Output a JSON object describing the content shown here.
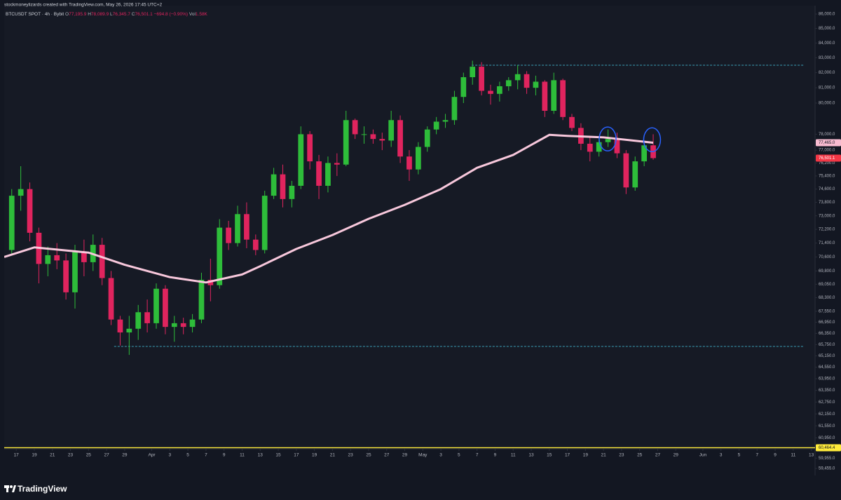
{
  "header": "stockmoneylizards created with TradingView.com, May 26, 2026 17:45 UTC+2",
  "footer": {
    "brand": "TradingView"
  },
  "chart_data": {
    "type": "candlestick",
    "log_scale": true,
    "grid": false,
    "legend": {
      "symbol": "BTCUSDT SPOT · 4h · Bybit",
      "items": [
        {
          "key": "O",
          "value": "77,195.9"
        },
        {
          "key": "H",
          "value": "78,089.9"
        },
        {
          "key": "L",
          "value": "76,345.7"
        },
        {
          "key": "C",
          "value": "76,501.1"
        }
      ],
      "change": "−694.8 (−0.90%)",
      "volume_key": "Vol",
      "volume": "1.58K"
    },
    "up_color": "#2ebd3a",
    "down_color": "#e0245e",
    "xlim": [
      "2026-03-15T16:00",
      "2026-06-13T10:00"
    ],
    "ylim": [
      59320,
      86590
    ],
    "x": [
      "2026-03-16",
      "2026-03-17",
      "2026-03-18",
      "2026-03-19",
      "2026-03-20",
      "2026-03-21",
      "2026-03-22",
      "2026-03-23",
      "2026-03-24",
      "2026-03-25",
      "2026-03-26",
      "2026-03-27",
      "2026-03-28",
      "2026-03-29",
      "2026-03-30",
      "2026-03-31",
      "2026-04-01",
      "2026-04-02",
      "2026-04-03",
      "2026-04-04",
      "2026-04-05",
      "2026-04-06",
      "2026-04-07",
      "2026-04-08",
      "2026-04-09",
      "2026-04-10",
      "2026-04-11",
      "2026-04-12",
      "2026-04-13",
      "2026-04-14",
      "2026-04-15",
      "2026-04-16",
      "2026-04-17",
      "2026-04-18",
      "2026-04-19",
      "2026-04-20",
      "2026-04-21",
      "2026-04-22",
      "2026-04-23",
      "2026-04-24",
      "2026-04-25",
      "2026-04-26",
      "2026-04-27",
      "2026-04-28",
      "2026-04-29",
      "2026-04-30",
      "2026-05-01",
      "2026-05-02",
      "2026-05-03",
      "2026-05-04",
      "2026-05-05",
      "2026-05-06",
      "2026-05-07",
      "2026-05-08",
      "2026-05-09",
      "2026-05-10",
      "2026-05-11",
      "2026-05-12",
      "2026-05-13",
      "2026-05-14",
      "2026-05-15",
      "2026-05-16",
      "2026-05-17",
      "2026-05-18",
      "2026-05-19",
      "2026-05-20",
      "2026-05-21",
      "2026-05-22",
      "2026-05-23",
      "2026-05-24",
      "2026-05-25",
      "2026-05-26"
    ],
    "open": [
      71000,
      74200,
      74600,
      72000,
      70200,
      70700,
      70400,
      68600,
      70900,
      70300,
      71300,
      69400,
      67100,
      66400,
      66600,
      67500,
      66900,
      68800,
      66700,
      66900,
      66700,
      67100,
      69300,
      69000,
      72300,
      71400,
      73100,
      71600,
      71000,
      74200,
      75500,
      74000,
      74800,
      78000,
      76300,
      74800,
      76200,
      76100,
      78900,
      78000,
      78000,
      77700,
      77600,
      78900,
      76600,
      75800,
      77200,
      78300,
      78800,
      78900,
      80400,
      81700,
      82400,
      80800,
      80600,
      81100,
      81500,
      81900,
      81000,
      81400,
      79500,
      81500,
      79100,
      78400,
      77400,
      76900,
      77500,
      77700,
      76800,
      74700,
      76300,
      77300
    ],
    "high": [
      74600,
      76000,
      75000,
      72300,
      71200,
      71400,
      70800,
      71300,
      71600,
      71900,
      71700,
      69800,
      67300,
      67300,
      67900,
      68200,
      69100,
      69000,
      67300,
      67200,
      67400,
      69700,
      70500,
      72800,
      72700,
      73600,
      73800,
      71900,
      74500,
      75900,
      76100,
      75100,
      78500,
      78200,
      76700,
      76600,
      76800,
      79500,
      79000,
      78500,
      78300,
      78100,
      79500,
      79200,
      77000,
      77500,
      78500,
      79100,
      79300,
      80800,
      82000,
      82800,
      82700,
      81200,
      81400,
      81700,
      82500,
      82100,
      81800,
      81500,
      82000,
      81600,
      79300,
      78700,
      77800,
      77800,
      78300,
      78100,
      77000,
      76600,
      77500,
      78000
    ],
    "low": [
      70700,
      73300,
      71500,
      69100,
      69500,
      69900,
      68200,
      67700,
      69500,
      69800,
      69000,
      66800,
      65700,
      65200,
      66000,
      66400,
      66600,
      66300,
      65900,
      66300,
      66400,
      66900,
      68100,
      68800,
      71000,
      71200,
      71100,
      70700,
      70800,
      74000,
      73500,
      73500,
      74600,
      75800,
      74000,
      74400,
      75400,
      76000,
      77700,
      77400,
      77400,
      77000,
      77200,
      76200,
      75100,
      75500,
      76900,
      78000,
      78400,
      78600,
      80000,
      81200,
      80500,
      79900,
      80100,
      80800,
      80900,
      80600,
      80500,
      79100,
      79300,
      78900,
      78200,
      77000,
      76300,
      76600,
      77200,
      76500,
      74300,
      74500,
      76000,
      76400
    ],
    "close": [
      74200,
      74600,
      72000,
      70200,
      70700,
      70400,
      68600,
      70900,
      70300,
      71300,
      69400,
      67100,
      66400,
      66600,
      67500,
      66900,
      68800,
      66700,
      66900,
      66700,
      67100,
      69300,
      69000,
      72300,
      71400,
      73100,
      71600,
      71000,
      74200,
      75500,
      74000,
      74800,
      78000,
      76300,
      74800,
      76200,
      76100,
      78900,
      78000,
      78000,
      77700,
      77600,
      78900,
      76600,
      75800,
      77200,
      78300,
      78800,
      78900,
      80400,
      81700,
      82400,
      80800,
      80600,
      81100,
      81500,
      81900,
      81000,
      81400,
      79500,
      81500,
      79100,
      78400,
      77400,
      76900,
      77500,
      77700,
      76800,
      74700,
      76300,
      77300,
      76501.1
    ],
    "ma": {
      "color": "#f8c8dc",
      "x": [
        "2026-03-15T16:00",
        "2026-03-19",
        "2026-03-25",
        "2026-03-29",
        "2026-04-03",
        "2026-04-07",
        "2026-04-11",
        "2026-04-13",
        "2026-04-17",
        "2026-04-21",
        "2026-04-25",
        "2026-04-29",
        "2026-05-03",
        "2026-05-07",
        "2026-05-11",
        "2026-05-15",
        "2026-05-17",
        "2026-05-21",
        "2026-05-26T12:00"
      ],
      "values": [
        70600,
        71150,
        70850,
        70150,
        69450,
        69150,
        69600,
        70070,
        71060,
        71870,
        72820,
        73650,
        74600,
        75900,
        76700,
        77960,
        77900,
        77800,
        77465
      ]
    },
    "levels": [
      {
        "value": 82500,
        "from": "2026-05-06T10:00",
        "to": "2026-06-12T04:00",
        "color": "#3a9fb5",
        "style": "dashed"
      },
      {
        "value": 65650,
        "from": "2026-03-27T20:00",
        "to": "2026-06-12T04:00",
        "color": "#3a9fb5",
        "style": "dashed"
      },
      {
        "value": 60464.4,
        "color": "#ffeb3b",
        "style": "solid"
      }
    ],
    "price_labels": [
      {
        "value": 77465.0,
        "label": "77,465.0",
        "color": "#f8bbd0",
        "text_color": "#131722"
      },
      {
        "value": 76501.1,
        "label": "76,501.1",
        "color": "#f23645",
        "text_color": "#ffffff"
      },
      {
        "value": 60464.4,
        "label": "60,464.4",
        "color": "#ffeb3b",
        "text_color": "#131722"
      }
    ],
    "annotations": [
      {
        "x": "2026-05-21T11:00",
        "y": 77700,
        "color": "#2962ff"
      },
      {
        "x": "2026-05-26T09:00",
        "y": 77650,
        "color": "#2962ff"
      }
    ],
    "yticks": [
      {
        "value": 86000,
        "label": "86,000.0"
      },
      {
        "value": 85000,
        "label": "85,000.0"
      },
      {
        "value": 84000,
        "label": "84,000.0"
      },
      {
        "value": 83000,
        "label": "83,000.0"
      },
      {
        "value": 82000,
        "label": "82,000.0"
      },
      {
        "value": 81000,
        "label": "81,000.0"
      },
      {
        "value": 80000,
        "label": "80,000.0"
      },
      {
        "value": 78000,
        "label": "78,000.0"
      },
      {
        "value": 77000,
        "label": "77,000.0"
      },
      {
        "value": 76200,
        "label": "76,200.0"
      },
      {
        "value": 75400,
        "label": "75,400.0"
      },
      {
        "value": 74600,
        "label": "74,600.0"
      },
      {
        "value": 73800,
        "label": "73,800.0"
      },
      {
        "value": 73000,
        "label": "73,000.0"
      },
      {
        "value": 72200,
        "label": "72,200.0"
      },
      {
        "value": 71400,
        "label": "71,400.0"
      },
      {
        "value": 70600,
        "label": "70,600.0"
      },
      {
        "value": 69800,
        "label": "69,800.0"
      },
      {
        "value": 69050,
        "label": "69,050.0"
      },
      {
        "value": 68300,
        "label": "68,300.0"
      },
      {
        "value": 67550,
        "label": "67,550.0"
      },
      {
        "value": 66950,
        "label": "66,950.0"
      },
      {
        "value": 66350,
        "label": "66,350.0"
      },
      {
        "value": 65750,
        "label": "65,750.0"
      },
      {
        "value": 65150,
        "label": "65,150.0"
      },
      {
        "value": 64550,
        "label": "64,550.0"
      },
      {
        "value": 63950,
        "label": "63,950.0"
      },
      {
        "value": 63350,
        "label": "63,350.0"
      },
      {
        "value": 62750,
        "label": "62,750.0"
      },
      {
        "value": 62150,
        "label": "62,150.0"
      },
      {
        "value": 61550,
        "label": "61,550.0"
      },
      {
        "value": 60950,
        "label": "60,950.0"
      },
      {
        "value": 59955,
        "label": "59,955.0"
      },
      {
        "value": 59455,
        "label": "59,455.0"
      }
    ],
    "xticks": [
      {
        "value": "2026-03-17",
        "label": "17"
      },
      {
        "value": "2026-03-19",
        "label": "19"
      },
      {
        "value": "2026-03-21",
        "label": "21"
      },
      {
        "value": "2026-03-23",
        "label": "23"
      },
      {
        "value": "2026-03-25",
        "label": "25"
      },
      {
        "value": "2026-03-27",
        "label": "27"
      },
      {
        "value": "2026-03-29",
        "label": "29"
      },
      {
        "value": "2026-04-01",
        "label": "Apr"
      },
      {
        "value": "2026-04-03",
        "label": "3"
      },
      {
        "value": "2026-04-05",
        "label": "5"
      },
      {
        "value": "2026-04-07",
        "label": "7"
      },
      {
        "value": "2026-04-09",
        "label": "9"
      },
      {
        "value": "2026-04-11",
        "label": "11"
      },
      {
        "value": "2026-04-13",
        "label": "13"
      },
      {
        "value": "2026-04-15",
        "label": "15"
      },
      {
        "value": "2026-04-17",
        "label": "17"
      },
      {
        "value": "2026-04-19",
        "label": "19"
      },
      {
        "value": "2026-04-21",
        "label": "21"
      },
      {
        "value": "2026-04-23",
        "label": "23"
      },
      {
        "value": "2026-04-25",
        "label": "25"
      },
      {
        "value": "2026-04-27",
        "label": "27"
      },
      {
        "value": "2026-04-29",
        "label": "29"
      },
      {
        "value": "2026-05-01",
        "label": "May"
      },
      {
        "value": "2026-05-03",
        "label": "3"
      },
      {
        "value": "2026-05-05",
        "label": "5"
      },
      {
        "value": "2026-05-07",
        "label": "7"
      },
      {
        "value": "2026-05-09",
        "label": "9"
      },
      {
        "value": "2026-05-11",
        "label": "11"
      },
      {
        "value": "2026-05-13",
        "label": "13"
      },
      {
        "value": "2026-05-15",
        "label": "15"
      },
      {
        "value": "2026-05-17",
        "label": "17"
      },
      {
        "value": "2026-05-19",
        "label": "19"
      },
      {
        "value": "2026-05-21",
        "label": "21"
      },
      {
        "value": "2026-05-23",
        "label": "23"
      },
      {
        "value": "2026-05-25",
        "label": "25"
      },
      {
        "value": "2026-05-27",
        "label": "27"
      },
      {
        "value": "2026-05-29",
        "label": "29"
      },
      {
        "value": "2026-06-01",
        "label": "Jun"
      },
      {
        "value": "2026-06-03",
        "label": "3"
      },
      {
        "value": "2026-06-05",
        "label": "5"
      },
      {
        "value": "2026-06-07",
        "label": "7"
      },
      {
        "value": "2026-06-09",
        "label": "9"
      },
      {
        "value": "2026-06-11",
        "label": "11"
      },
      {
        "value": "2026-06-13",
        "label": "13"
      }
    ]
  }
}
